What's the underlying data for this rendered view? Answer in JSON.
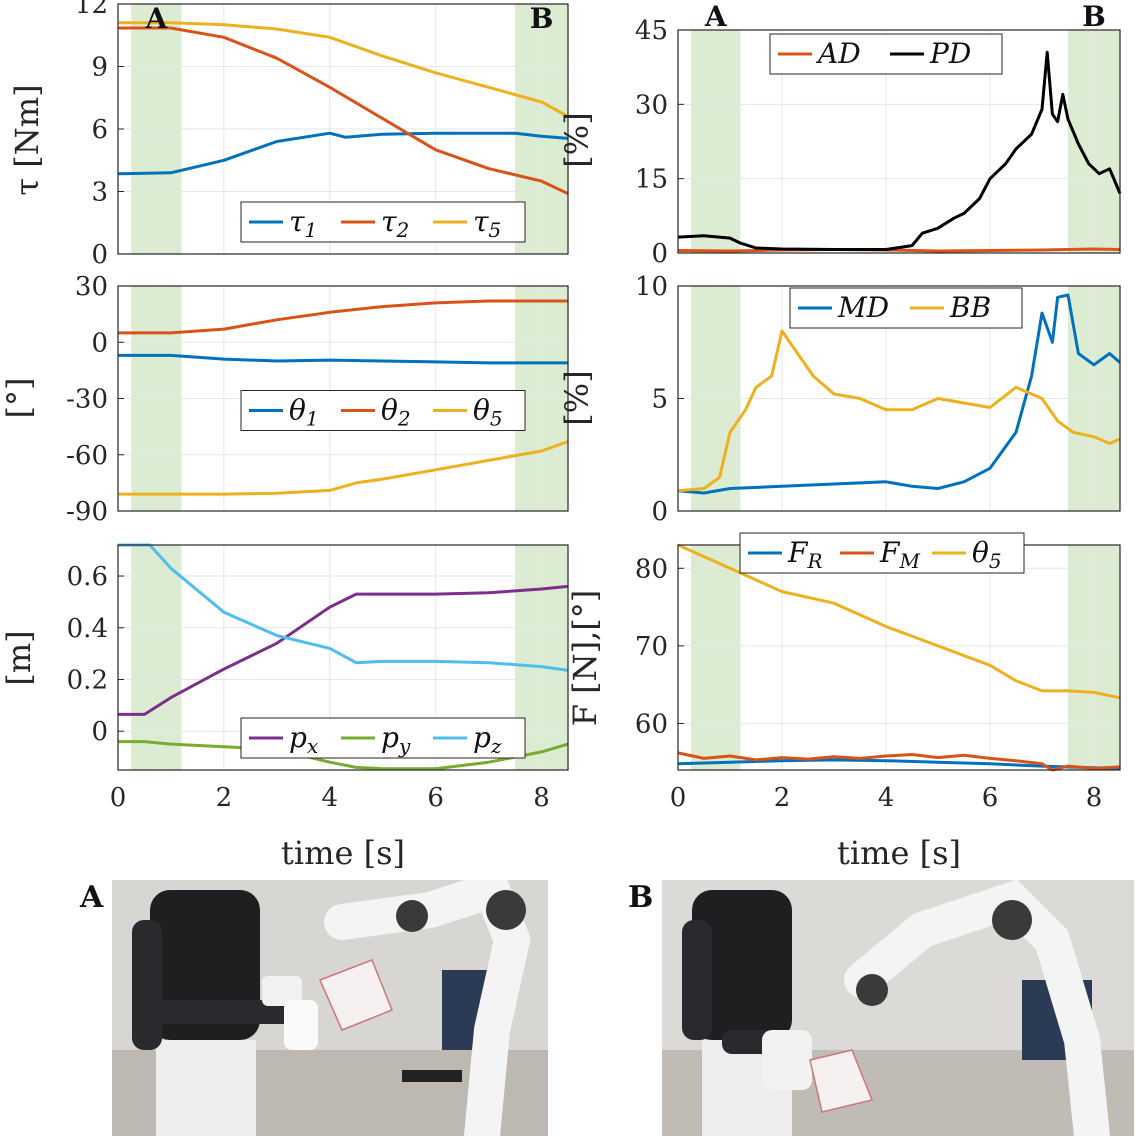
{
  "colors": {
    "blue": "#0072BD",
    "orange": "#D95319",
    "yellow": "#EDB120",
    "purple": "#7E2F8E",
    "green": "#77AC30",
    "lightblue": "#4DBEEE",
    "black": "#000000",
    "zone": "#dcecd2"
  },
  "shared": {
    "xlabel": "time [s]",
    "zone_a_label": "A",
    "zone_b_label": "B",
    "zone_a_range": [
      0.25,
      1.2
    ],
    "zone_b_range": [
      7.5,
      8.5
    ]
  },
  "photos": {
    "a_label": "A",
    "b_label": "B"
  },
  "chart_data": [
    {
      "id": "torque",
      "type": "line",
      "ylabel": "τ [Nm]",
      "xlim": [
        0,
        8.5
      ],
      "ylim": [
        0,
        12
      ],
      "xticks": [],
      "yticks": [
        0,
        3,
        6,
        9,
        12
      ],
      "yticklabels": [
        "0",
        "3",
        "6",
        "9",
        "12"
      ],
      "legend": "bottom-center",
      "series": [
        {
          "name": "τ1",
          "sym": "τ",
          "sub": "1",
          "color": "blue",
          "x": [
            0,
            1,
            2,
            3,
            4,
            4.3,
            5,
            6,
            7,
            7.5,
            8,
            8.5
          ],
          "y": [
            3.85,
            3.9,
            4.5,
            5.4,
            5.8,
            5.6,
            5.75,
            5.8,
            5.8,
            5.8,
            5.65,
            5.55
          ]
        },
        {
          "name": "τ2",
          "sym": "τ",
          "sub": "2",
          "color": "orange",
          "x": [
            0,
            1,
            2,
            3,
            4,
            5,
            6,
            7,
            8,
            8.5
          ],
          "y": [
            10.85,
            10.85,
            10.4,
            9.4,
            8.0,
            6.5,
            5.0,
            4.1,
            3.5,
            2.9
          ]
        },
        {
          "name": "τ5",
          "sym": "τ",
          "sub": "5",
          "color": "yellow",
          "x": [
            0,
            1,
            2,
            3,
            4,
            5,
            6,
            7,
            8,
            8.5
          ],
          "y": [
            11.1,
            11.1,
            11.0,
            10.8,
            10.4,
            9.5,
            8.7,
            8.0,
            7.3,
            6.6
          ]
        }
      ]
    },
    {
      "id": "angles",
      "type": "line",
      "ylabel": "[°]",
      "xlim": [
        0,
        8.5
      ],
      "ylim": [
        -90,
        30
      ],
      "xticks": [],
      "yticks": [
        30,
        0,
        -30,
        -60,
        -90
      ],
      "yticklabels": [
        "30",
        "0",
        "-30",
        "-60",
        "-90"
      ],
      "legend": "center",
      "series": [
        {
          "name": "θ1",
          "sym": "θ",
          "sub": "1",
          "color": "blue",
          "x": [
            0,
            1,
            2,
            3,
            4,
            5,
            6,
            7,
            8,
            8.5
          ],
          "y": [
            -7,
            -7,
            -9,
            -10,
            -9.5,
            -10,
            -10.5,
            -11,
            -11,
            -11
          ]
        },
        {
          "name": "θ2",
          "sym": "θ",
          "sub": "2",
          "color": "orange",
          "x": [
            0,
            1,
            2,
            3,
            4,
            5,
            6,
            7,
            8,
            8.5
          ],
          "y": [
            5,
            5,
            7,
            12,
            16,
            19,
            21,
            22,
            22,
            22
          ]
        },
        {
          "name": "θ5",
          "sym": "θ",
          "sub": "5",
          "color": "yellow",
          "x": [
            0,
            1,
            2,
            3,
            4,
            4.5,
            5,
            6,
            7,
            8,
            8.5
          ],
          "y": [
            -81,
            -81,
            -81,
            -80.5,
            -79,
            -75,
            -73,
            -68,
            -63,
            -58,
            -53
          ]
        }
      ]
    },
    {
      "id": "position",
      "type": "line",
      "ylabel": "[m]",
      "xlim": [
        0,
        8.5
      ],
      "ylim": [
        -0.15,
        0.72
      ],
      "xticks": [
        0,
        2,
        4,
        6,
        8
      ],
      "xticklabels": [
        "0",
        "2",
        "4",
        "6",
        "8"
      ],
      "yticks": [
        0.6,
        0.4,
        0.2,
        0
      ],
      "yticklabels": [
        "0.6",
        "0.4",
        "0.2",
        "0"
      ],
      "legend": "bottom-center",
      "series": [
        {
          "name": "px",
          "sym": "p",
          "sub": "x",
          "color": "purple",
          "x": [
            0,
            0.5,
            1,
            2,
            3,
            4,
            4.5,
            5,
            6,
            7,
            8,
            8.5
          ],
          "y": [
            0.065,
            0.065,
            0.13,
            0.24,
            0.34,
            0.48,
            0.53,
            0.53,
            0.53,
            0.535,
            0.55,
            0.56
          ]
        },
        {
          "name": "py",
          "sym": "p",
          "sub": "y",
          "color": "green",
          "x": [
            0,
            0.5,
            1,
            2,
            3,
            4,
            4.5,
            5,
            6,
            7,
            8,
            8.5
          ],
          "y": [
            -0.04,
            -0.04,
            -0.05,
            -0.06,
            -0.07,
            -0.12,
            -0.14,
            -0.145,
            -0.145,
            -0.12,
            -0.08,
            -0.05
          ]
        },
        {
          "name": "pz",
          "sym": "p",
          "sub": "z",
          "color": "lightblue",
          "x": [
            0,
            0.6,
            1,
            2,
            3,
            4,
            4.5,
            5,
            6,
            7,
            8,
            8.5
          ],
          "y": [
            0.72,
            0.72,
            0.63,
            0.46,
            0.37,
            0.32,
            0.265,
            0.27,
            0.27,
            0.265,
            0.25,
            0.235
          ]
        }
      ]
    },
    {
      "id": "emg1",
      "type": "line",
      "ylabel": "[%]",
      "xlim": [
        0,
        8.5
      ],
      "ylim": [
        0,
        45
      ],
      "xticks": [],
      "yticks": [
        45,
        30,
        15,
        0
      ],
      "yticklabels": [
        "45",
        "30",
        "15",
        "0"
      ],
      "legend": "top-left",
      "series": [
        {
          "name": "AD",
          "sym": "AD",
          "sub": "",
          "color": "orange",
          "x": [
            0,
            1,
            2,
            3,
            4,
            5,
            6,
            7,
            8,
            8.5
          ],
          "y": [
            0.5,
            0.4,
            0.6,
            0.7,
            0.6,
            0.4,
            0.5,
            0.6,
            0.8,
            0.7
          ]
        },
        {
          "name": "PD",
          "sym": "PD",
          "sub": "",
          "color": "black",
          "x": [
            0,
            0.5,
            1,
            1.2,
            1.5,
            2,
            3,
            4,
            4.5,
            4.7,
            5,
            5.3,
            5.5,
            5.8,
            6,
            6.3,
            6.5,
            6.8,
            7,
            7.1,
            7.2,
            7.3,
            7.4,
            7.5,
            7.7,
            7.9,
            8.1,
            8.3,
            8.5
          ],
          "y": [
            3.2,
            3.5,
            3.0,
            2.0,
            1.0,
            0.8,
            0.7,
            0.7,
            1.5,
            4.0,
            5.0,
            7.0,
            8.0,
            11.0,
            15.0,
            18.0,
            21.0,
            24.0,
            29.0,
            40.5,
            28.0,
            26.5,
            32.0,
            27.0,
            22.0,
            18.0,
            16.0,
            17.0,
            12.0
          ]
        }
      ]
    },
    {
      "id": "emg2",
      "type": "line",
      "ylabel": "[%]",
      "xlim": [
        0,
        8.5
      ],
      "ylim": [
        0,
        10
      ],
      "xticks": [],
      "yticks": [
        10,
        5,
        0
      ],
      "yticklabels": [
        "10",
        "5",
        "0"
      ],
      "legend": "top-right",
      "series": [
        {
          "name": "MD",
          "sym": "MD",
          "sub": "",
          "color": "blue",
          "x": [
            0,
            0.5,
            1,
            2,
            3,
            4,
            4.5,
            5,
            5.5,
            6,
            6.5,
            6.8,
            7,
            7.2,
            7.3,
            7.5,
            7.7,
            8,
            8.3,
            8.5
          ],
          "y": [
            0.9,
            0.8,
            1.0,
            1.1,
            1.2,
            1.3,
            1.1,
            1.0,
            1.3,
            1.9,
            3.5,
            6.0,
            8.8,
            7.5,
            9.5,
            9.6,
            7.0,
            6.5,
            7.0,
            6.6
          ]
        },
        {
          "name": "BB",
          "sym": "BB",
          "sub": "",
          "color": "yellow",
          "x": [
            0,
            0.5,
            0.8,
            1,
            1.3,
            1.5,
            1.8,
            2,
            2.3,
            2.6,
            3,
            3.5,
            4,
            4.5,
            5,
            5.5,
            6,
            6.5,
            7,
            7.3,
            7.6,
            8,
            8.3,
            8.5
          ],
          "y": [
            0.9,
            1.0,
            1.5,
            3.5,
            4.5,
            5.5,
            6.0,
            8.0,
            7.0,
            6.0,
            5.2,
            5.0,
            4.5,
            4.5,
            5.0,
            4.8,
            4.6,
            5.5,
            5.0,
            4.0,
            3.5,
            3.3,
            3.0,
            3.2
          ]
        }
      ]
    },
    {
      "id": "force",
      "type": "line",
      "ylabel": "F [N],[°]",
      "xlim": [
        0,
        8.5
      ],
      "ylim": [
        54,
        83
      ],
      "xticks": [
        0,
        2,
        4,
        6,
        8
      ],
      "xticklabels": [
        "0",
        "2",
        "4",
        "6",
        "8"
      ],
      "yticks": [
        80,
        70,
        60
      ],
      "yticklabels": [
        "80",
        "70",
        "60"
      ],
      "legend": "top-right",
      "series": [
        {
          "name": "FR",
          "sym": "F",
          "sub": "R",
          "color": "blue",
          "x": [
            0,
            1,
            2,
            3,
            4,
            5,
            6,
            7,
            8,
            8.5
          ],
          "y": [
            54.8,
            55.0,
            55.2,
            55.3,
            55.2,
            55.0,
            54.8,
            54.5,
            54.3,
            54.2
          ]
        },
        {
          "name": "FM",
          "sym": "F",
          "sub": "M",
          "color": "orange",
          "x": [
            0,
            0.5,
            1,
            1.5,
            2,
            2.5,
            3,
            3.5,
            4,
            4.5,
            5,
            5.5,
            6,
            6.5,
            7,
            7.2,
            7.5,
            8,
            8.5
          ],
          "y": [
            56.2,
            55.5,
            55.8,
            55.3,
            55.6,
            55.4,
            55.7,
            55.5,
            55.8,
            56.0,
            55.6,
            55.9,
            55.5,
            55.2,
            54.8,
            53.8,
            54.5,
            54.2,
            54.4
          ]
        },
        {
          "name": "θ5",
          "sym": "θ",
          "sub": "5",
          "color": "yellow",
          "x": [
            0,
            0.5,
            1,
            2,
            3,
            4,
            5,
            6,
            6.5,
            7,
            7.5,
            8,
            8.5
          ],
          "y": [
            83,
            81.5,
            80,
            77,
            75.5,
            72.5,
            70,
            67.5,
            65.5,
            64.2,
            64.2,
            64.0,
            63.3
          ]
        }
      ]
    }
  ]
}
